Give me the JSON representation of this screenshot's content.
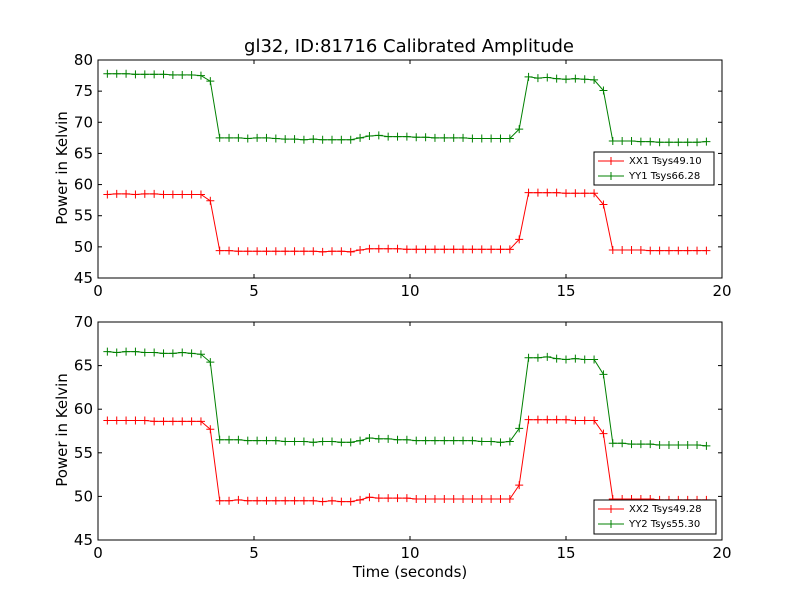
{
  "chart_data": [
    {
      "type": "line",
      "title": "gl32, ID:81716 Calibrated Amplitude",
      "xlabel": "",
      "ylabel": "Power in Kelvin",
      "xlim": [
        0,
        20
      ],
      "ylim": [
        45,
        80
      ],
      "xticks": [
        0,
        5,
        10,
        15,
        20
      ],
      "yticks": [
        45,
        50,
        55,
        60,
        65,
        70,
        75,
        80
      ],
      "legend_position": "right",
      "series": [
        {
          "name": "XX1 Tsys49.10",
          "color": "#ff0000",
          "x": [
            0.3,
            0.6,
            0.9,
            1.2,
            1.5,
            1.8,
            2.1,
            2.4,
            2.7,
            3.0,
            3.3,
            3.6,
            3.9,
            4.2,
            4.5,
            4.8,
            5.1,
            5.4,
            5.7,
            6.0,
            6.3,
            6.6,
            6.9,
            7.2,
            7.5,
            7.8,
            8.1,
            8.4,
            8.7,
            9.0,
            9.3,
            9.6,
            9.9,
            10.2,
            10.5,
            10.8,
            11.1,
            11.4,
            11.7,
            12.0,
            12.3,
            12.6,
            12.9,
            13.2,
            13.5,
            13.8,
            14.1,
            14.4,
            14.7,
            15.0,
            15.3,
            15.6,
            15.9,
            16.2,
            16.5,
            16.8,
            17.1,
            17.4,
            17.7,
            18.0,
            18.3,
            18.6,
            18.9,
            19.2,
            19.5
          ],
          "values": [
            58.4,
            58.5,
            58.5,
            58.4,
            58.5,
            58.5,
            58.4,
            58.4,
            58.4,
            58.4,
            58.4,
            57.4,
            49.4,
            49.4,
            49.3,
            49.3,
            49.3,
            49.3,
            49.3,
            49.3,
            49.3,
            49.3,
            49.3,
            49.2,
            49.3,
            49.3,
            49.2,
            49.5,
            49.7,
            49.7,
            49.7,
            49.7,
            49.6,
            49.6,
            49.6,
            49.6,
            49.6,
            49.6,
            49.6,
            49.6,
            49.6,
            49.6,
            49.6,
            49.6,
            51.2,
            58.7,
            58.7,
            58.7,
            58.7,
            58.6,
            58.6,
            58.6,
            58.6,
            56.8,
            49.5,
            49.5,
            49.5,
            49.5,
            49.4,
            49.4,
            49.4,
            49.4,
            49.4,
            49.4,
            49.4
          ]
        },
        {
          "name": "YY1 Tsys66.28",
          "color": "#008000",
          "x": [
            0.3,
            0.6,
            0.9,
            1.2,
            1.5,
            1.8,
            2.1,
            2.4,
            2.7,
            3.0,
            3.3,
            3.6,
            3.9,
            4.2,
            4.5,
            4.8,
            5.1,
            5.4,
            5.7,
            6.0,
            6.3,
            6.6,
            6.9,
            7.2,
            7.5,
            7.8,
            8.1,
            8.4,
            8.7,
            9.0,
            9.3,
            9.6,
            9.9,
            10.2,
            10.5,
            10.8,
            11.1,
            11.4,
            11.7,
            12.0,
            12.3,
            12.6,
            12.9,
            13.2,
            13.5,
            13.8,
            14.1,
            14.4,
            14.7,
            15.0,
            15.3,
            15.6,
            15.9,
            16.2,
            16.5,
            16.8,
            17.1,
            17.4,
            17.7,
            18.0,
            18.3,
            18.6,
            18.9,
            19.2,
            19.5
          ],
          "values": [
            77.8,
            77.8,
            77.8,
            77.7,
            77.7,
            77.7,
            77.7,
            77.6,
            77.6,
            77.6,
            77.5,
            76.6,
            67.5,
            67.5,
            67.5,
            67.4,
            67.5,
            67.5,
            67.4,
            67.3,
            67.3,
            67.2,
            67.3,
            67.2,
            67.2,
            67.2,
            67.2,
            67.5,
            67.8,
            67.9,
            67.7,
            67.7,
            67.7,
            67.6,
            67.6,
            67.5,
            67.5,
            67.5,
            67.5,
            67.4,
            67.4,
            67.4,
            67.4,
            67.4,
            68.9,
            77.3,
            77.1,
            77.2,
            77.0,
            76.9,
            77.0,
            76.9,
            76.8,
            75.1,
            67.0,
            67.0,
            67.0,
            66.9,
            66.9,
            66.8,
            66.8,
            66.8,
            66.8,
            66.8,
            66.9
          ]
        }
      ]
    },
    {
      "type": "line",
      "title": "",
      "xlabel": "Time (seconds)",
      "ylabel": "Power in Kelvin",
      "xlim": [
        0,
        20
      ],
      "ylim": [
        45,
        70
      ],
      "xticks": [
        0,
        5,
        10,
        15,
        20
      ],
      "yticks": [
        45,
        50,
        55,
        60,
        65,
        70
      ],
      "legend_position": "lower right",
      "series": [
        {
          "name": "XX2 Tsys49.28",
          "color": "#ff0000",
          "x": [
            0.3,
            0.6,
            0.9,
            1.2,
            1.5,
            1.8,
            2.1,
            2.4,
            2.7,
            3.0,
            3.3,
            3.6,
            3.9,
            4.2,
            4.5,
            4.8,
            5.1,
            5.4,
            5.7,
            6.0,
            6.3,
            6.6,
            6.9,
            7.2,
            7.5,
            7.8,
            8.1,
            8.4,
            8.7,
            9.0,
            9.3,
            9.6,
            9.9,
            10.2,
            10.5,
            10.8,
            11.1,
            11.4,
            11.7,
            12.0,
            12.3,
            12.6,
            12.9,
            13.2,
            13.5,
            13.8,
            14.1,
            14.4,
            14.7,
            15.0,
            15.3,
            15.6,
            15.9,
            16.2,
            16.5,
            16.8,
            17.1,
            17.4,
            17.7,
            18.0,
            18.3,
            18.6,
            18.9,
            19.2,
            19.5
          ],
          "values": [
            58.7,
            58.7,
            58.7,
            58.7,
            58.7,
            58.6,
            58.6,
            58.6,
            58.6,
            58.6,
            58.6,
            57.7,
            49.5,
            49.5,
            49.6,
            49.5,
            49.5,
            49.5,
            49.5,
            49.5,
            49.5,
            49.5,
            49.5,
            49.4,
            49.5,
            49.4,
            49.4,
            49.6,
            49.9,
            49.8,
            49.8,
            49.8,
            49.8,
            49.7,
            49.7,
            49.7,
            49.7,
            49.7,
            49.7,
            49.7,
            49.7,
            49.7,
            49.7,
            49.7,
            51.3,
            58.8,
            58.8,
            58.8,
            58.8,
            58.8,
            58.7,
            58.7,
            58.7,
            57.2,
            49.7,
            49.7,
            49.7,
            49.7,
            49.7,
            49.6,
            49.6,
            49.6,
            49.6,
            49.6,
            49.6
          ]
        },
        {
          "name": "YY2 Tsys55.30",
          "color": "#008000",
          "x": [
            0.3,
            0.6,
            0.9,
            1.2,
            1.5,
            1.8,
            2.1,
            2.4,
            2.7,
            3.0,
            3.3,
            3.6,
            3.9,
            4.2,
            4.5,
            4.8,
            5.1,
            5.4,
            5.7,
            6.0,
            6.3,
            6.6,
            6.9,
            7.2,
            7.5,
            7.8,
            8.1,
            8.4,
            8.7,
            9.0,
            9.3,
            9.6,
            9.9,
            10.2,
            10.5,
            10.8,
            11.1,
            11.4,
            11.7,
            12.0,
            12.3,
            12.6,
            12.9,
            13.2,
            13.5,
            13.8,
            14.1,
            14.4,
            14.7,
            15.0,
            15.3,
            15.6,
            15.9,
            16.2,
            16.5,
            16.8,
            17.1,
            17.4,
            17.7,
            18.0,
            18.3,
            18.6,
            18.9,
            19.2,
            19.5
          ],
          "values": [
            66.6,
            66.5,
            66.6,
            66.6,
            66.5,
            66.5,
            66.4,
            66.4,
            66.5,
            66.4,
            66.3,
            65.4,
            56.5,
            56.5,
            56.5,
            56.4,
            56.4,
            56.4,
            56.4,
            56.3,
            56.3,
            56.3,
            56.2,
            56.3,
            56.3,
            56.2,
            56.2,
            56.4,
            56.7,
            56.6,
            56.6,
            56.5,
            56.5,
            56.4,
            56.4,
            56.4,
            56.4,
            56.4,
            56.4,
            56.4,
            56.3,
            56.3,
            56.2,
            56.3,
            57.8,
            65.9,
            65.9,
            66.0,
            65.8,
            65.7,
            65.8,
            65.7,
            65.7,
            64.0,
            56.1,
            56.1,
            56.0,
            56.0,
            56.0,
            55.9,
            55.9,
            55.9,
            55.9,
            55.9,
            55.8
          ]
        }
      ]
    }
  ]
}
